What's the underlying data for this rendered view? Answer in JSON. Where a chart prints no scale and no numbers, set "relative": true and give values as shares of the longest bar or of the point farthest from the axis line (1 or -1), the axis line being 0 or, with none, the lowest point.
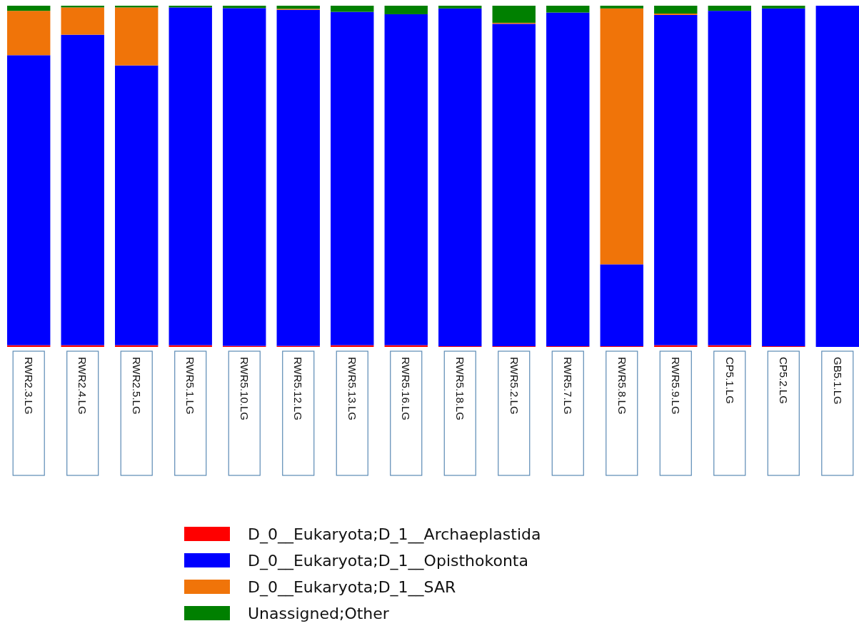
{
  "chart_data": {
    "type": "bar",
    "stacked": true,
    "relative": true,
    "legend": "bottom",
    "categories": [
      "RWR2.3.LG",
      "RWR2.4.LG",
      "RWR2.5.LG",
      "RWR5.1.LG",
      "RWR5.10.LG",
      "RWR5.12.LG",
      "RWR5.13.LG",
      "RWR5.16.LG",
      "RWR5.18.LG",
      "RWR5.2.LG",
      "RWR5.7.LG",
      "RWR5.8.LG",
      "RWR5.9.LG",
      "CP5.1.LG",
      "CP5.2.LG",
      "GB5.1.LG"
    ],
    "series": [
      {
        "name": "D_0__Eukaryota;D_1__Archaeplastida",
        "color": "#ff0000",
        "values": [
          0.005,
          0.005,
          0.005,
          0.005,
          0.003,
          0.003,
          0.005,
          0.005,
          0.002,
          0.002,
          0.002,
          0.002,
          0.005,
          0.005,
          0.002,
          0
        ]
      },
      {
        "name": "D_0__Eukaryota;D_1__Opisthokonta",
        "color": "#0000ff",
        "values": [
          0.85,
          0.91,
          0.82,
          0.99,
          0.99,
          0.985,
          0.977,
          0.97,
          0.99,
          0.945,
          0.978,
          0.24,
          0.968,
          0.98,
          0.99,
          1
        ]
      },
      {
        "name": "D_0__Eukaryota;D_1__SAR",
        "color": "#f07409",
        "values": [
          0.13,
          0.08,
          0.17,
          0,
          0,
          0.003,
          0,
          0,
          0,
          0.003,
          0,
          0.75,
          0.004,
          0,
          0,
          0
        ]
      },
      {
        "name": "Unassigned;Other",
        "color": "#008000",
        "values": [
          0.015,
          0.005,
          0.005,
          0.005,
          0.007,
          0.009,
          0.018,
          0.025,
          0.008,
          0.05,
          0.02,
          0.008,
          0.023,
          0.015,
          0.008,
          0
        ]
      }
    ]
  }
}
